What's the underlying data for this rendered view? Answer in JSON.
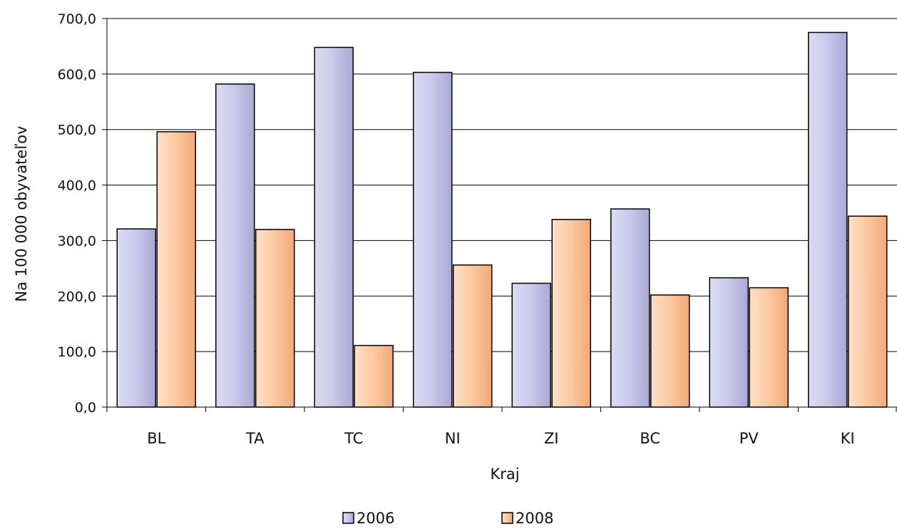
{
  "chart_data": {
    "type": "bar",
    "categories": [
      "BL",
      "TA",
      "TC",
      "NI",
      "ZI",
      "BC",
      "PV",
      "KI"
    ],
    "series": [
      {
        "name": "2006",
        "values": [
          321,
          582,
          648,
          603,
          223,
          357,
          233,
          675
        ],
        "color": "#c4c4e8"
      },
      {
        "name": "2008",
        "values": [
          496,
          320,
          111,
          256,
          338,
          202,
          215,
          344
        ],
        "color": "#fcc8a0"
      }
    ],
    "title": "",
    "xlabel": "Kraj",
    "ylabel": "Na 100 000 obyvateľov",
    "ylim": [
      0,
      700
    ],
    "yticks": [
      0,
      100,
      200,
      300,
      400,
      500,
      600,
      700
    ],
    "ytick_labels": [
      "0,0",
      "100,0",
      "200,0",
      "300,0",
      "400,0",
      "500,0",
      "600,0",
      "700,0"
    ],
    "grid": true,
    "legend": "bottom"
  }
}
